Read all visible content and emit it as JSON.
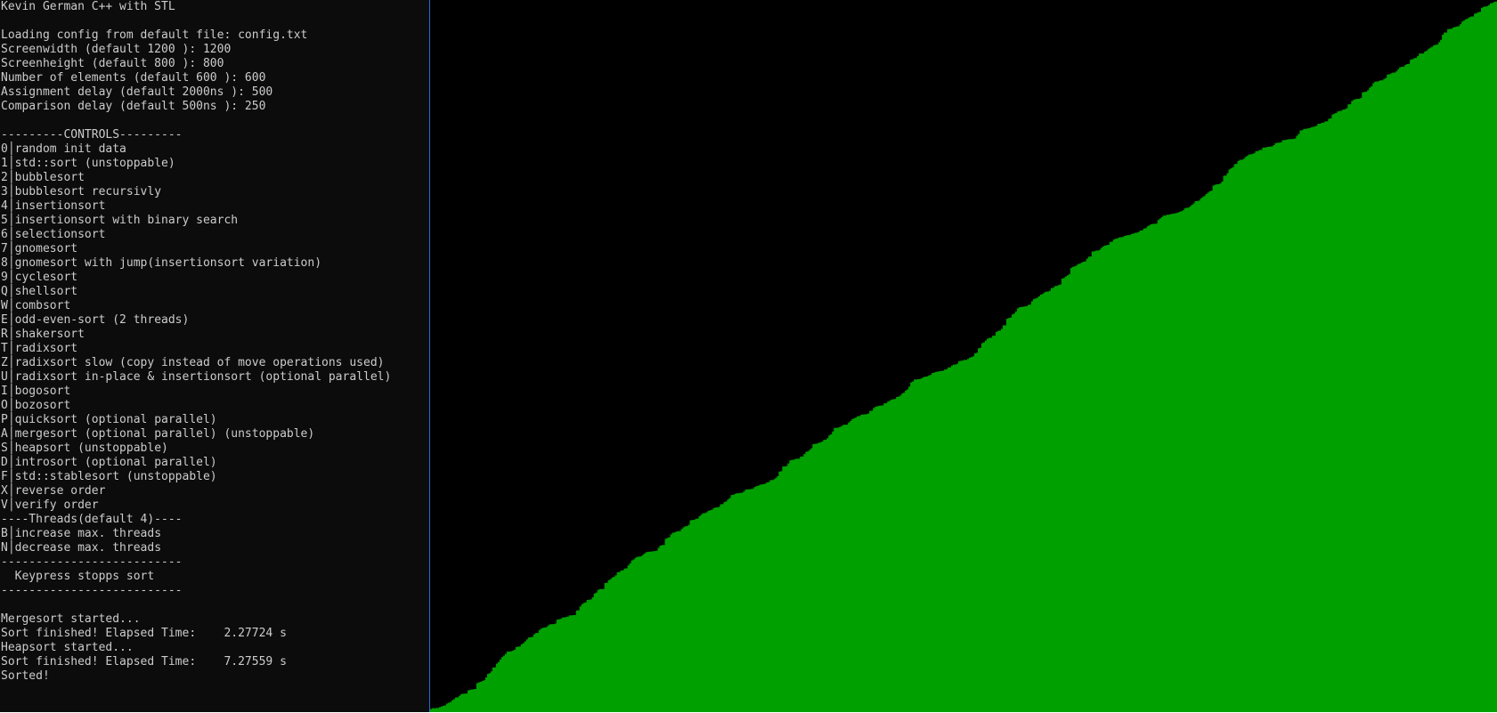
{
  "console": {
    "title": "Kevin German C++ with STL",
    "config_lines": [
      "Loading config from default file: config.txt",
      "Screenwidth (default 1200 ): 1200",
      "Screenheight (default 800 ): 800",
      "Number of elements (default 600 ): 600",
      "Assignment delay (default 2000ns ): 500",
      "Comparison delay (default 500ns ): 250"
    ],
    "controls_header": "---------CONTROLS---------",
    "controls": [
      {
        "key": "0",
        "label": "random init data"
      },
      {
        "key": "1",
        "label": "std::sort (unstoppable)"
      },
      {
        "key": "2",
        "label": "bubblesort"
      },
      {
        "key": "3",
        "label": "bubblesort recursivly"
      },
      {
        "key": "4",
        "label": "insertionsort"
      },
      {
        "key": "5",
        "label": "insertionsort with binary search"
      },
      {
        "key": "6",
        "label": "selectionsort"
      },
      {
        "key": "7",
        "label": "gnomesort"
      },
      {
        "key": "8",
        "label": "gnomesort with jump(insertionsort variation)"
      },
      {
        "key": "9",
        "label": "cyclesort"
      },
      {
        "key": "Q",
        "label": "shellsort"
      },
      {
        "key": "W",
        "label": "combsort"
      },
      {
        "key": "E",
        "label": "odd-even-sort (2 threads)"
      },
      {
        "key": "R",
        "label": "shakersort"
      },
      {
        "key": "T",
        "label": "radixsort"
      },
      {
        "key": "Z",
        "label": "radixsort slow (copy instead of move operations used)"
      },
      {
        "key": "U",
        "label": "radixsort in-place & insertionsort (optional parallel)"
      },
      {
        "key": "I",
        "label": "bogosort"
      },
      {
        "key": "O",
        "label": "bozosort"
      },
      {
        "key": "P",
        "label": "quicksort (optional parallel)"
      },
      {
        "key": "A",
        "label": "mergesort (optional parallel) (unstoppable)"
      },
      {
        "key": "S",
        "label": "heapsort (unstoppable)"
      },
      {
        "key": "D",
        "label": "introsort (optional parallel)"
      },
      {
        "key": "F",
        "label": "std::stablesort (unstoppable)"
      },
      {
        "key": "X",
        "label": "reverse order"
      },
      {
        "key": "V",
        "label": "verify order"
      }
    ],
    "threads_header": "----Threads(default 4)----",
    "thread_controls": [
      {
        "key": "B",
        "label": "increase max. threads"
      },
      {
        "key": "N",
        "label": "decrease max. threads"
      }
    ],
    "separator_top": "--------------------------",
    "keypress_note": "  Keypress stopps sort",
    "separator_bottom": "--------------------------",
    "log_lines": [
      "Mergesort started...",
      "Sort finished! Elapsed Time:    2.27724 s",
      "Heapsort started...",
      "Sort finished! Elapsed Time:    7.27559 s",
      "Sorted!"
    ]
  },
  "visualization": {
    "element_count": 600,
    "max_value": 800,
    "state": "sorted ascending",
    "bar_color": "#00a000",
    "background_color": "#000000"
  },
  "colors": {
    "console_bg": "#0c0c0c",
    "console_text": "#cccccc",
    "divider": "#2b6cd6"
  }
}
